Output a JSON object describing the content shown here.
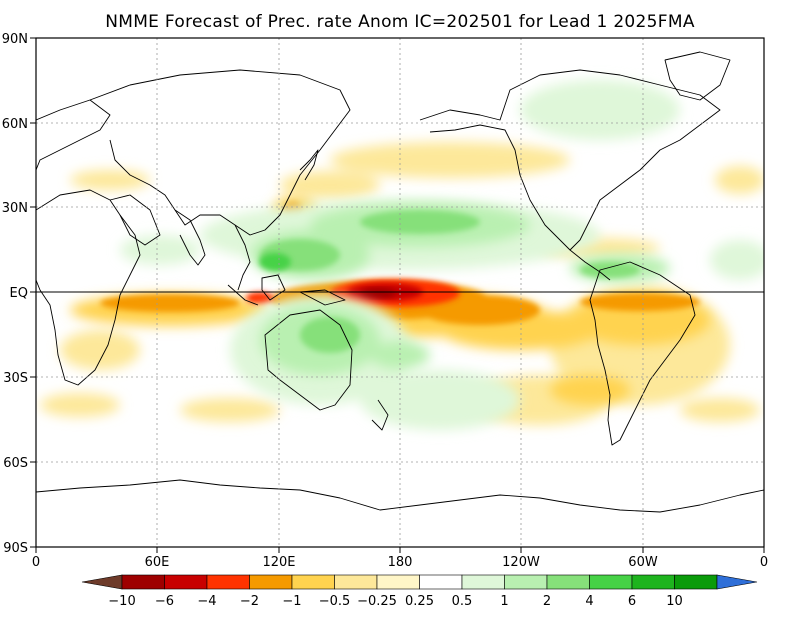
{
  "title": "NMME Forecast of Prec. rate Anom IC=202501 for Lead 1 2025FMA",
  "axes": {
    "lat_labels": [
      "90N",
      "60N",
      "30N",
      "EQ",
      "30S",
      "60S",
      "90S"
    ],
    "lon_labels": [
      "0",
      "60E",
      "120E",
      "180",
      "120W",
      "60W",
      "0"
    ]
  },
  "colorbar": {
    "labels": [
      "−10",
      "−6",
      "−4",
      "−2",
      "−1",
      "−0.5",
      "−0.25",
      "0.25",
      "0.5",
      "1",
      "2",
      "4",
      "6",
      "10"
    ],
    "colors": {
      "below": "#6e3b2a",
      "bins": [
        "#9e0000",
        "#c80000",
        "#ff3300",
        "#f59a00",
        "#ffd34f",
        "#fde89a",
        "#fff6c8",
        "#ffffff",
        "#dff7d9",
        "#b9f0b1",
        "#86e07a",
        "#46d246",
        "#1eb41e",
        "#0a9b0a"
      ],
      "above": "#2f6fd8"
    }
  },
  "colors": {
    "frame": "#000000",
    "grid": "#9a9a9a",
    "coast": "#000000"
  }
}
